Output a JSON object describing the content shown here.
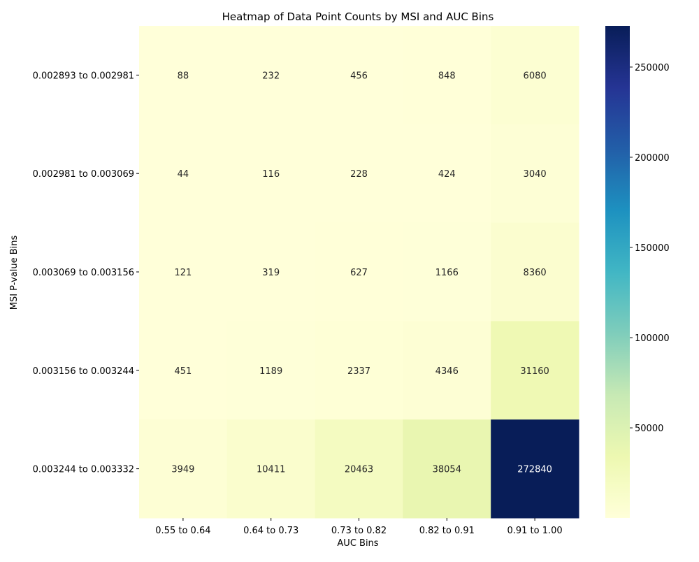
{
  "chart_data": {
    "type": "heatmap",
    "title": "Heatmap of Data Point Counts by MSI and AUC Bins",
    "xlabel": "AUC Bins",
    "ylabel": "MSI P-value Bins",
    "x_categories": [
      "0.55 to 0.64",
      "0.64 to 0.73",
      "0.73 to 0.82",
      "0.82 to 0.91",
      "0.91 to 1.00"
    ],
    "y_categories": [
      "0.002893 to 0.002981",
      "0.002981 to 0.003069",
      "0.003069 to 0.003156",
      "0.003156 to 0.003244",
      "0.003244 to 0.003332"
    ],
    "values": [
      [
        88,
        232,
        456,
        848,
        6080
      ],
      [
        44,
        116,
        228,
        424,
        3040
      ],
      [
        121,
        319,
        627,
        1166,
        8360
      ],
      [
        451,
        1189,
        2337,
        4346,
        31160
      ],
      [
        3949,
        10411,
        20463,
        38054,
        272840
      ]
    ],
    "colormap": "YlGnBu",
    "color_range": [
      44,
      272840
    ],
    "colorbar_ticks": [
      50000,
      100000,
      150000,
      200000,
      250000
    ],
    "annotations": true,
    "legend": "colorbar-right"
  }
}
